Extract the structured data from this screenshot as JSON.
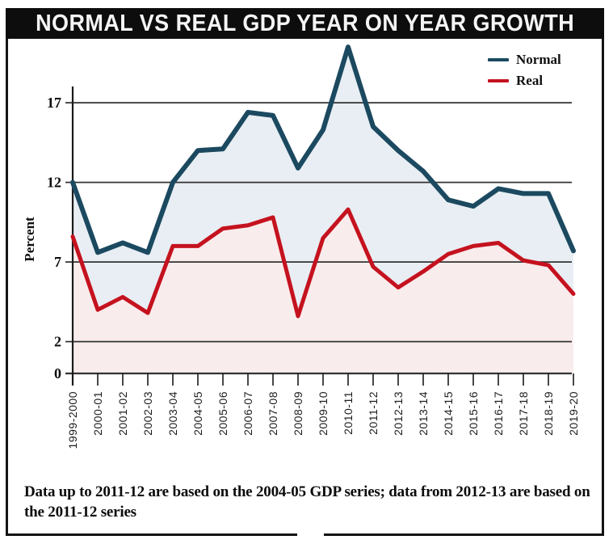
{
  "title": "NORMAL VS REAL GDP YEAR ON YEAR GROWTH",
  "footnote": "Data up to 2011-12 are based on the 2004-05 GDP series; data from 2012-13 are based on the 2011-12 series",
  "colors": {
    "frame": "#141414",
    "title_bar_bg": "#0d0d0d",
    "title_text": "#f5f5f5",
    "grid": "#333333",
    "axis": "#1a1a1a",
    "normal_line": "#1b4960",
    "real_line": "#c5121f",
    "normal_fill": "#e8eef3",
    "real_fill": "#f9ecec"
  },
  "chart_data": {
    "type": "line",
    "title": "NORMAL VS REAL GDP YEAR ON YEAR GROWTH",
    "xlabel": "",
    "ylabel": "Percent",
    "categories": [
      "1999-2000",
      "2000-01",
      "2001-02",
      "2002-03",
      "2003-04",
      "2004-05",
      "2005-06",
      "2006-07",
      "2007-08",
      "2008-09",
      "2009-10",
      "2010-11",
      "2011-12",
      "2012-13",
      "2013-14",
      "2014-15",
      "2015-16",
      "2016-17",
      "2017-18",
      "2018-19",
      "2019-20"
    ],
    "series": [
      {
        "name": "Normal",
        "color": "#1b4960",
        "fill": "#e8eef3",
        "values": [
          12.0,
          7.6,
          8.2,
          7.6,
          12.0,
          14.0,
          14.1,
          16.4,
          16.2,
          12.9,
          15.3,
          20.5,
          15.5,
          14.0,
          12.7,
          10.9,
          10.5,
          11.6,
          11.3,
          11.3,
          7.7
        ]
      },
      {
        "name": "Real",
        "color": "#c5121f",
        "fill": "#f9ecec",
        "values": [
          8.6,
          4.0,
          4.8,
          3.8,
          8.0,
          8.0,
          9.1,
          9.3,
          9.8,
          3.6,
          8.5,
          10.3,
          6.7,
          5.4,
          6.4,
          7.5,
          8.0,
          8.2,
          7.1,
          6.8,
          5.0
        ]
      }
    ],
    "yticks": [
      0,
      2,
      7,
      12,
      17
    ],
    "ylim": [
      0,
      20.5
    ],
    "grid": true,
    "area_fill": true,
    "legend_position": "top-right"
  }
}
